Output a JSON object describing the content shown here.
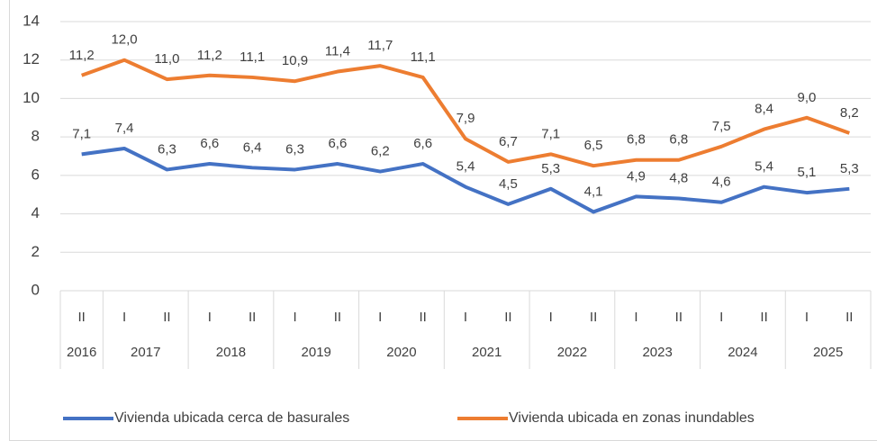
{
  "chart_data": {
    "type": "line",
    "categories": [
      "II",
      "I",
      "II",
      "I",
      "II",
      "I",
      "II",
      "I",
      "II",
      "I",
      "II",
      "I",
      "II",
      "I",
      "II",
      "I",
      "II",
      "I",
      "II"
    ],
    "category_groups": [
      {
        "label": "2016",
        "size": 1
      },
      {
        "label": "2017",
        "size": 2
      },
      {
        "label": "2018",
        "size": 2
      },
      {
        "label": "2019",
        "size": 2
      },
      {
        "label": "2020",
        "size": 2
      },
      {
        "label": "2021",
        "size": 2
      },
      {
        "label": "2022",
        "size": 2
      },
      {
        "label": "2023",
        "size": 2
      },
      {
        "label": "2024",
        "size": 2
      },
      {
        "label": "2025",
        "size": 2
      }
    ],
    "series": [
      {
        "name": "Vivienda ubicada cerca de basurales",
        "color": "#4472c4",
        "values": [
          7.1,
          7.4,
          6.3,
          6.6,
          6.4,
          6.3,
          6.6,
          6.2,
          6.6,
          5.4,
          4.5,
          5.3,
          4.1,
          4.9,
          4.8,
          4.6,
          5.4,
          5.1,
          5.3
        ],
        "value_labels": [
          "7,1",
          "7,4",
          "6,3",
          "6,6",
          "6,4",
          "6,3",
          "6,6",
          "6,2",
          "6,6",
          "5,4",
          "4,5",
          "5,3",
          "4,1",
          "4,9",
          "4,8",
          "4,6",
          "5,4",
          "5,1",
          "5,3"
        ]
      },
      {
        "name": "Vivienda ubicada en zonas inundables",
        "color": "#ed7d31",
        "values": [
          11.2,
          12.0,
          11.0,
          11.2,
          11.1,
          10.9,
          11.4,
          11.7,
          11.1,
          7.9,
          6.7,
          7.1,
          6.5,
          6.8,
          6.8,
          7.5,
          8.4,
          9.0,
          8.2
        ],
        "value_labels": [
          "11,2",
          "12,0",
          "11,0",
          "11,2",
          "11,1",
          "10,9",
          "11,4",
          "11,7",
          "11,1",
          "7,9",
          "6,7",
          "7,1",
          "6,5",
          "6,8",
          "6,8",
          "7,5",
          "8,4",
          "9,0",
          "8,2"
        ]
      }
    ],
    "ylim": [
      0,
      14
    ],
    "yticks": [
      0,
      2,
      4,
      6,
      8,
      10,
      12,
      14
    ],
    "grid": true
  }
}
